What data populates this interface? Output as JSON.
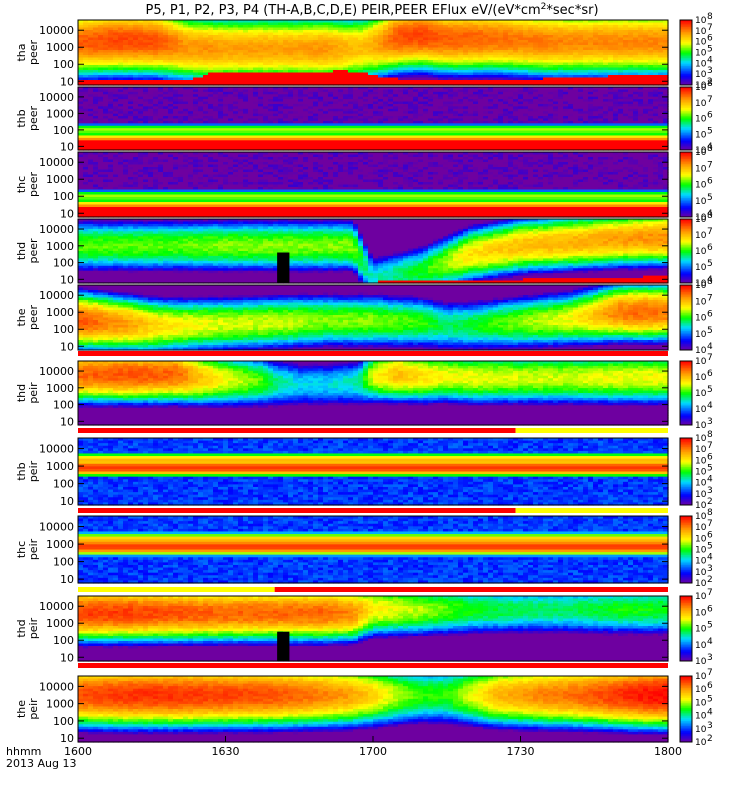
{
  "chart_data": {
    "type": "heatmap",
    "title": "P5, P1, P2, P3, P4 (TH-A,B,C,D,E) PEIR,PEER EFlux eV/(eV*cm2*sec*sr)",
    "title_main": "P5, P1, P2, P3, P4 (TH-A,B,C,D,E) PEIR,PEER EFlux eV/(eV*cm",
    "title_sup": "2",
    "title_end": "*sec*sr)",
    "x_axis": {
      "tick_labels": [
        "1600",
        "1630",
        "1700",
        "1730",
        "1800"
      ],
      "ticks_minutes": [
        0,
        30,
        60,
        90,
        120
      ],
      "range_minutes": [
        0,
        120
      ],
      "label_line1": "hhmm",
      "label_line2": "2013 Aug 13"
    },
    "y_tick_labels": [
      "10",
      "100",
      "1000",
      "10000"
    ],
    "panels": [
      {
        "name_line1": "tha",
        "name_line2": "peer",
        "y_log_range": [
          0.78,
          4.6
        ],
        "colorbar_exp": [
          2,
          8
        ],
        "minutes": [
          0,
          8,
          16,
          22,
          27,
          30,
          38,
          45,
          50,
          55,
          58,
          61,
          65,
          70,
          75,
          80,
          85,
          90,
          95,
          100,
          105,
          110,
          115,
          120
        ],
        "low_cutoff_log": [
          1.05,
          1.05,
          1.05,
          1.05,
          1.45,
          1.5,
          1.52,
          1.55,
          1.58,
          1.6,
          1.5,
          1.3,
          1.15,
          1.12,
          1.1,
          1.1,
          1.12,
          1.12,
          1.15,
          1.15,
          1.2,
          1.35,
          1.35,
          1.3
        ],
        "peak_energy_log": [
          3.3,
          3.4,
          3.35,
          3.0,
          2.9,
          2.9,
          2.9,
          2.9,
          2.9,
          2.9,
          3.0,
          3.2,
          3.6,
          3.7,
          3.5,
          3.5,
          3.5,
          3.4,
          3.3,
          3.3,
          3.3,
          3.3,
          3.3,
          3.3
        ],
        "peak_flux_log": [
          7.3,
          7.5,
          7.4,
          6.9,
          6.9,
          6.8,
          6.8,
          6.8,
          6.9,
          6.6,
          6.5,
          6.8,
          7.4,
          7.5,
          7.3,
          7.3,
          7.2,
          7.1,
          7.1,
          7.0,
          7.0,
          7.0,
          7.0,
          7.0
        ]
      },
      {
        "name_line1": "thb",
        "name_line2": "peer",
        "y_log_range": [
          0.78,
          4.6
        ],
        "colorbar_exp": [
          4,
          8
        ],
        "minutes": [
          0,
          120
        ],
        "band_centers_log": [
          2.0,
          1.0
        ],
        "band_flux_log": [
          6.4,
          8.0
        ],
        "background_flux_log": 4.0
      },
      {
        "name_line1": "thc",
        "name_line2": "peer",
        "y_log_range": [
          0.78,
          4.6
        ],
        "colorbar_exp": [
          4,
          8
        ],
        "minutes": [
          0,
          120
        ],
        "band_centers_log": [
          2.0,
          1.0
        ],
        "band_flux_log": [
          6.4,
          8.0
        ],
        "background_flux_log": 4.0
      },
      {
        "name_line1": "thd",
        "name_line2": "peer",
        "y_log_range": [
          0.78,
          4.6
        ],
        "colorbar_exp": [
          4,
          8
        ],
        "minutes": [
          0,
          10,
          20,
          30,
          40,
          50,
          56,
          60,
          70,
          80,
          90,
          100,
          110,
          120
        ],
        "low_cutoff_log": [
          0.85,
          0.85,
          0.85,
          0.85,
          0.85,
          0.85,
          0.85,
          0.85,
          0.9,
          0.95,
          1.0,
          1.05,
          1.1,
          1.2
        ],
        "peak_energy_log": [
          3.0,
          3.0,
          3.0,
          3.0,
          3.0,
          3.0,
          3.0,
          1.0,
          1.5,
          2.5,
          3.0,
          3.2,
          3.4,
          3.5
        ],
        "peak_flux_log": [
          6.2,
          6.2,
          6.2,
          6.3,
          6.3,
          6.3,
          6.3,
          5.5,
          6.0,
          6.8,
          7.0,
          7.1,
          7.2,
          7.3
        ],
        "gap_minutes": [
          40.5,
          43
        ],
        "gap_top_log": 2.6
      },
      {
        "name_line1": "the",
        "name_line2": "peer",
        "y_log_range": [
          0.78,
          4.6
        ],
        "colorbar_exp": [
          4,
          8
        ],
        "minutes": [
          0,
          5,
          10,
          15,
          20,
          30,
          40,
          50,
          60,
          70,
          75,
          80,
          90,
          100,
          105,
          110,
          115,
          120
        ],
        "peak_energy_log": [
          2.5,
          2.4,
          2.3,
          2.2,
          2.2,
          2.3,
          2.4,
          2.5,
          2.5,
          2.4,
          2.2,
          2.2,
          2.4,
          2.6,
          2.8,
          3.0,
          3.0,
          3.0
        ],
        "peak_flux_log": [
          7.6,
          7.4,
          7.2,
          6.9,
          6.7,
          6.5,
          6.5,
          6.3,
          6.3,
          6.1,
          5.8,
          5.9,
          6.3,
          6.6,
          7.0,
          7.4,
          7.5,
          7.4
        ]
      },
      {
        "name_line1": "thd",
        "name_line2": "peir",
        "y_log_range": [
          0.78,
          4.6
        ],
        "colorbar_exp": [
          3,
          7
        ],
        "minutes": [
          0,
          10,
          20,
          25,
          30,
          37,
          40,
          45,
          50,
          57,
          60,
          65,
          70,
          75,
          80,
          90,
          100,
          110,
          120
        ],
        "peak_energy_log": [
          3.8,
          3.8,
          3.8,
          3.6,
          3.5,
          3.4,
          3.3,
          3.2,
          3.2,
          3.3,
          3.7,
          3.8,
          3.7,
          3.7,
          3.6,
          3.6,
          3.6,
          3.6,
          3.6
        ],
        "peak_flux_log": [
          6.5,
          6.6,
          6.5,
          6.0,
          5.6,
          5.2,
          4.8,
          4.4,
          4.4,
          4.6,
          5.6,
          6.0,
          5.8,
          5.6,
          5.6,
          5.5,
          5.5,
          5.6,
          5.6
        ]
      },
      {
        "name_line1": "thb",
        "name_line2": "peir",
        "y_log_range": [
          0.78,
          4.6
        ],
        "colorbar_exp": [
          2,
          8
        ],
        "minutes": [
          0,
          120
        ],
        "band_centers_log": [
          2.9,
          3.3
        ],
        "band_flux_log": [
          7.6,
          6.6
        ],
        "background_flux_log": 3.2
      },
      {
        "name_line1": "thc",
        "name_line2": "peir",
        "y_log_range": [
          0.78,
          4.6
        ],
        "colorbar_exp": [
          2,
          8
        ],
        "minutes": [
          0,
          120
        ],
        "band_centers_log": [
          2.85,
          3.2
        ],
        "band_flux_log": [
          7.6,
          6.6
        ],
        "background_flux_log": 3.2
      },
      {
        "name_line1": "thd",
        "name_line2": "peir",
        "y_log_range": [
          0.78,
          4.6
        ],
        "colorbar_exp": [
          3,
          7
        ],
        "minutes": [
          0,
          10,
          20,
          30,
          40,
          50,
          56,
          60,
          70,
          80,
          90,
          100,
          110,
          120
        ],
        "peak_energy_log": [
          3.6,
          3.6,
          3.6,
          3.6,
          3.6,
          3.6,
          3.6,
          3.8,
          3.8,
          3.8,
          3.8,
          3.8,
          3.8,
          3.8
        ],
        "peak_flux_log": [
          6.7,
          6.7,
          6.6,
          6.5,
          6.5,
          6.5,
          6.3,
          5.7,
          5.4,
          5.0,
          4.8,
          4.8,
          5.0,
          5.0
        ],
        "gap_minutes": [
          40.5,
          43
        ],
        "gap_top_log": 2.5
      },
      {
        "name_line1": "the",
        "name_line2": "peir",
        "y_log_range": [
          0.78,
          4.6
        ],
        "colorbar_exp": [
          2,
          7
        ],
        "minutes": [
          0,
          10,
          20,
          30,
          40,
          50,
          55,
          60,
          65,
          70,
          75,
          80,
          85,
          90,
          95,
          100,
          105,
          110,
          115,
          120
        ],
        "peak_energy_log": [
          3.5,
          3.5,
          3.5,
          3.5,
          3.5,
          3.5,
          3.5,
          3.5,
          3.5,
          3.5,
          3.5,
          3.5,
          3.5,
          3.5,
          3.5,
          3.5,
          3.5,
          3.5,
          3.5,
          3.5
        ],
        "peak_flux_log": [
          6.5,
          6.7,
          6.7,
          6.6,
          6.5,
          6.2,
          6.0,
          5.6,
          5.0,
          4.6,
          4.6,
          5.2,
          5.8,
          6.0,
          6.2,
          6.3,
          6.5,
          6.7,
          6.9,
          7.0
        ]
      }
    ],
    "separator_bars": [
      {
        "after_panel": 4,
        "segments": [
          {
            "from": 0,
            "to": 120,
            "color": "#ff0000"
          }
        ]
      },
      {
        "after_panel": 5,
        "segments": [
          {
            "from": 0,
            "to": 89,
            "color": "#ff0000"
          },
          {
            "from": 89,
            "to": 120,
            "color": "#ffff00"
          }
        ]
      },
      {
        "after_panel": 6,
        "segments": [
          {
            "from": 0,
            "to": 89,
            "color": "#ff0000"
          },
          {
            "from": 89,
            "to": 120,
            "color": "#ffff00"
          }
        ]
      },
      {
        "after_panel": 7,
        "segments": [
          {
            "from": 0,
            "to": 40,
            "color": "#ffff00"
          },
          {
            "from": 40,
            "to": 120,
            "color": "#ff0000"
          }
        ]
      },
      {
        "after_panel": 8,
        "segments": [
          {
            "from": 0,
            "to": 120,
            "color": "#ff0000"
          }
        ]
      }
    ]
  }
}
